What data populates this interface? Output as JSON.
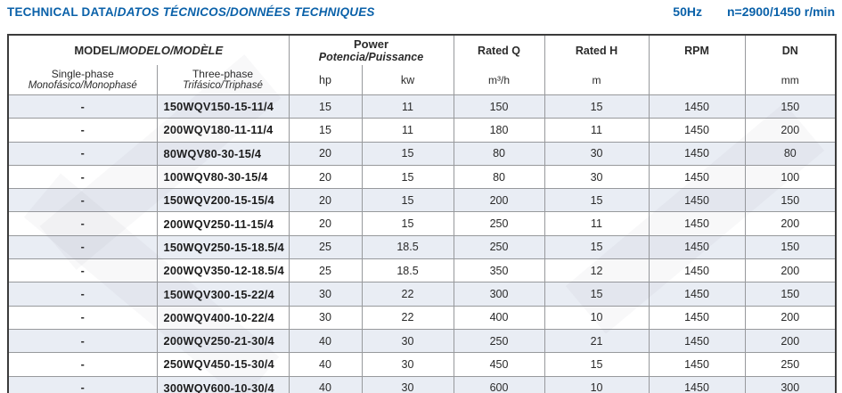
{
  "header": {
    "title_main": "TECHNICAL DATA/",
    "title_intl": "DATOS TÉCNICOS/DONNÉES TECHNIQUES",
    "frequency": "50Hz",
    "speed": "n=2900/1450 r/min"
  },
  "table": {
    "model_group_main": "MODEL/",
    "model_group_intl": "MODELO/MODÈLE",
    "power_group_en": "Power",
    "power_group_intl": "Potencia/Puissance",
    "single_phase_en": "Single-phase",
    "single_phase_intl": "Monofásico/Monophasé",
    "three_phase_en": "Three-phase",
    "three_phase_intl": "Trifásico/Triphasé",
    "hp_label": "hp",
    "kw_label": "kw",
    "rated_q_title": "Rated Q",
    "rated_q_unit": "m³/h",
    "rated_h_title": "Rated H",
    "rated_h_unit": "m",
    "rpm_title": "RPM",
    "rpm_unit": "",
    "dn_title": "DN",
    "dn_unit": "mm"
  },
  "rows": [
    {
      "single": "-",
      "model": "150WQV150-15-11/4",
      "hp": "15",
      "kw": "11",
      "q": "150",
      "h": "15",
      "rpm": "1450",
      "dn": "150"
    },
    {
      "single": "-",
      "model": "200WQV180-11-11/4",
      "hp": "15",
      "kw": "11",
      "q": "180",
      "h": "11",
      "rpm": "1450",
      "dn": "200"
    },
    {
      "single": "-",
      "model": "80WQV80-30-15/4",
      "hp": "20",
      "kw": "15",
      "q": "80",
      "h": "30",
      "rpm": "1450",
      "dn": "80"
    },
    {
      "single": "-",
      "model": "100WQV80-30-15/4",
      "hp": "20",
      "kw": "15",
      "q": "80",
      "h": "30",
      "rpm": "1450",
      "dn": "100"
    },
    {
      "single": "-",
      "model": "150WQV200-15-15/4",
      "hp": "20",
      "kw": "15",
      "q": "200",
      "h": "15",
      "rpm": "1450",
      "dn": "150"
    },
    {
      "single": "-",
      "model": "200WQV250-11-15/4",
      "hp": "20",
      "kw": "15",
      "q": "250",
      "h": "11",
      "rpm": "1450",
      "dn": "200"
    },
    {
      "single": "-",
      "model": "150WQV250-15-18.5/4",
      "hp": "25",
      "kw": "18.5",
      "q": "250",
      "h": "15",
      "rpm": "1450",
      "dn": "150"
    },
    {
      "single": "-",
      "model": "200WQV350-12-18.5/4",
      "hp": "25",
      "kw": "18.5",
      "q": "350",
      "h": "12",
      "rpm": "1450",
      "dn": "200"
    },
    {
      "single": "-",
      "model": "150WQV300-15-22/4",
      "hp": "30",
      "kw": "22",
      "q": "300",
      "h": "15",
      "rpm": "1450",
      "dn": "150"
    },
    {
      "single": "-",
      "model": "200WQV400-10-22/4",
      "hp": "30",
      "kw": "22",
      "q": "400",
      "h": "10",
      "rpm": "1450",
      "dn": "200"
    },
    {
      "single": "-",
      "model": "200WQV250-21-30/4",
      "hp": "40",
      "kw": "30",
      "q": "250",
      "h": "21",
      "rpm": "1450",
      "dn": "200"
    },
    {
      "single": "-",
      "model": "250WQV450-15-30/4",
      "hp": "40",
      "kw": "30",
      "q": "450",
      "h": "15",
      "rpm": "1450",
      "dn": "250"
    },
    {
      "single": "-",
      "model": "300WQV600-10-30/4",
      "hp": "40",
      "kw": "30",
      "q": "600",
      "h": "10",
      "rpm": "1450",
      "dn": "300"
    }
  ]
}
